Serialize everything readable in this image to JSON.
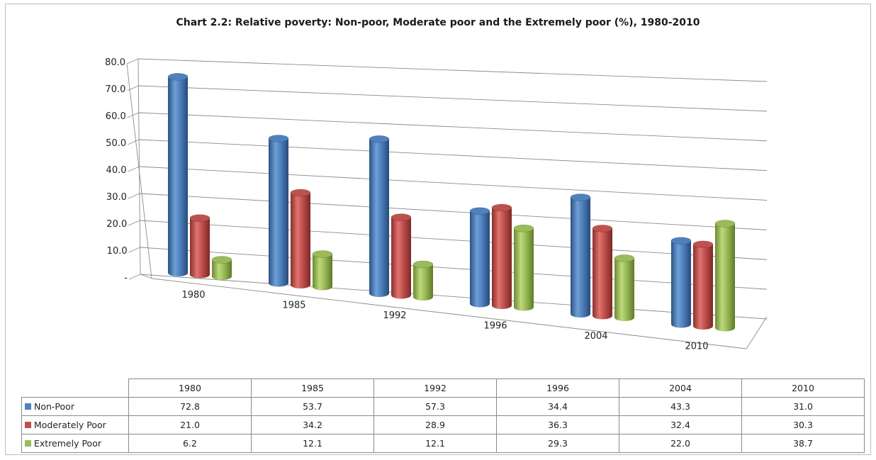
{
  "chart_data": {
    "type": "bar",
    "title": "Chart 2.2: Relative poverty: Non-poor, Moderate poor and the Extremely poor (%), 1980-2010",
    "categories": [
      "1980",
      "1985",
      "1992",
      "1996",
      "2004",
      "2010"
    ],
    "series": [
      {
        "name": "Non-Poor",
        "color": "#4f81bd",
        "values": [
          72.8,
          53.7,
          57.3,
          34.4,
          43.3,
          31.0
        ]
      },
      {
        "name": "Moderately Poor",
        "color": "#c0504d",
        "values": [
          21.0,
          34.2,
          28.9,
          36.3,
          32.4,
          30.3
        ]
      },
      {
        "name": "Extremely Poor",
        "color": "#9bbb59",
        "values": [
          6.2,
          12.1,
          12.1,
          29.3,
          22.0,
          38.7
        ]
      }
    ],
    "yticks": [
      "-",
      "10.0",
      "20.0",
      "30.0",
      "40.0",
      "50.0",
      "60.0",
      "70.0",
      "80.0"
    ],
    "ylim": [
      0,
      80
    ],
    "grid": true,
    "style": "3d-cylinder",
    "data_table": {
      "rows": [
        {
          "label": "Non-Poor",
          "values": [
            "72.8",
            "53.7",
            "57.3",
            "34.4",
            "43.3",
            "31.0"
          ]
        },
        {
          "label": "Moderately Poor",
          "values": [
            "21.0",
            "34.2",
            "28.9",
            "36.3",
            "32.4",
            "30.3"
          ]
        },
        {
          "label": "Extremely Poor",
          "values": [
            "6.2",
            "12.1",
            "12.1",
            "29.3",
            "22.0",
            "38.7"
          ]
        }
      ]
    }
  }
}
